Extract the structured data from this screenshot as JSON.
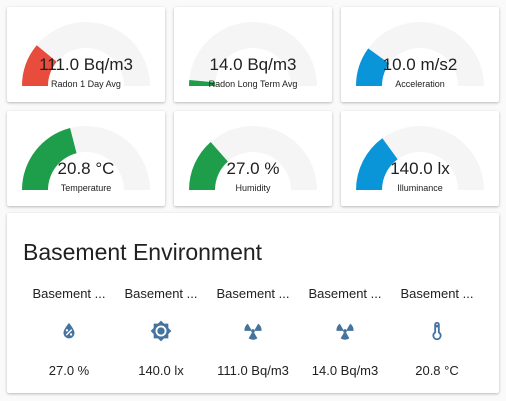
{
  "colors": {
    "red": "#e74c3c",
    "green": "#1e9e4a",
    "blue": "#0b95d9",
    "track": "#f5f5f5",
    "icon": "#44739e"
  },
  "gauges": [
    {
      "value": "111.0 Bq/m3",
      "name": "Radon 1 Day Avg",
      "fill": 0.22,
      "color": "red"
    },
    {
      "value": "14.0 Bq/m3",
      "name": "Radon Long Term Avg",
      "fill": 0.03,
      "color": "green"
    },
    {
      "value": "10.0 m/s2",
      "name": "Acceleration",
      "fill": 0.2,
      "color": "blue"
    },
    {
      "value": "20.8 °C",
      "name": "Temperature",
      "fill": 0.42,
      "color": "green"
    },
    {
      "value": "27.0 %",
      "name": "Humidity",
      "fill": 0.27,
      "color": "green"
    },
    {
      "value": "140.0 lx",
      "name": "Illuminance",
      "fill": 0.3,
      "color": "blue"
    }
  ],
  "entities": {
    "title": "Basement Environment",
    "items": [
      {
        "name": "Basement ...",
        "icon": "water-percent-icon",
        "state": "27.0 %"
      },
      {
        "name": "Basement ...",
        "icon": "brightness-icon",
        "state": "140.0 lx"
      },
      {
        "name": "Basement ...",
        "icon": "radioactive-icon",
        "state": "111.0 Bq/m3"
      },
      {
        "name": "Basement ...",
        "icon": "radioactive-icon",
        "state": "14.0 Bq/m3"
      },
      {
        "name": "Basement ...",
        "icon": "thermometer-icon",
        "state": "20.8 °C"
      }
    ]
  }
}
